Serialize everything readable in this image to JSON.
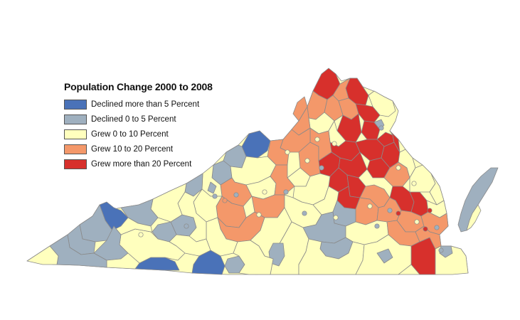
{
  "legend": {
    "title": "Population Change 2000 to 2008",
    "items": [
      {
        "label": "Declined more than 5 Percent",
        "color": "#4a72b8"
      },
      {
        "label": "Declined 0 to 5 Percent",
        "color": "#9fb0bf"
      },
      {
        "label": "Grew 0 to 10 Percent",
        "color": "#ffffbe"
      },
      {
        "label": "Grew 10 to 20 Percent",
        "color": "#f4986a"
      },
      {
        "label": "Grew more than 20 Percent",
        "color": "#d7302c"
      }
    ]
  },
  "colors": {
    "boundary": "#8a8a8a",
    "background": "#ffffff"
  }
}
